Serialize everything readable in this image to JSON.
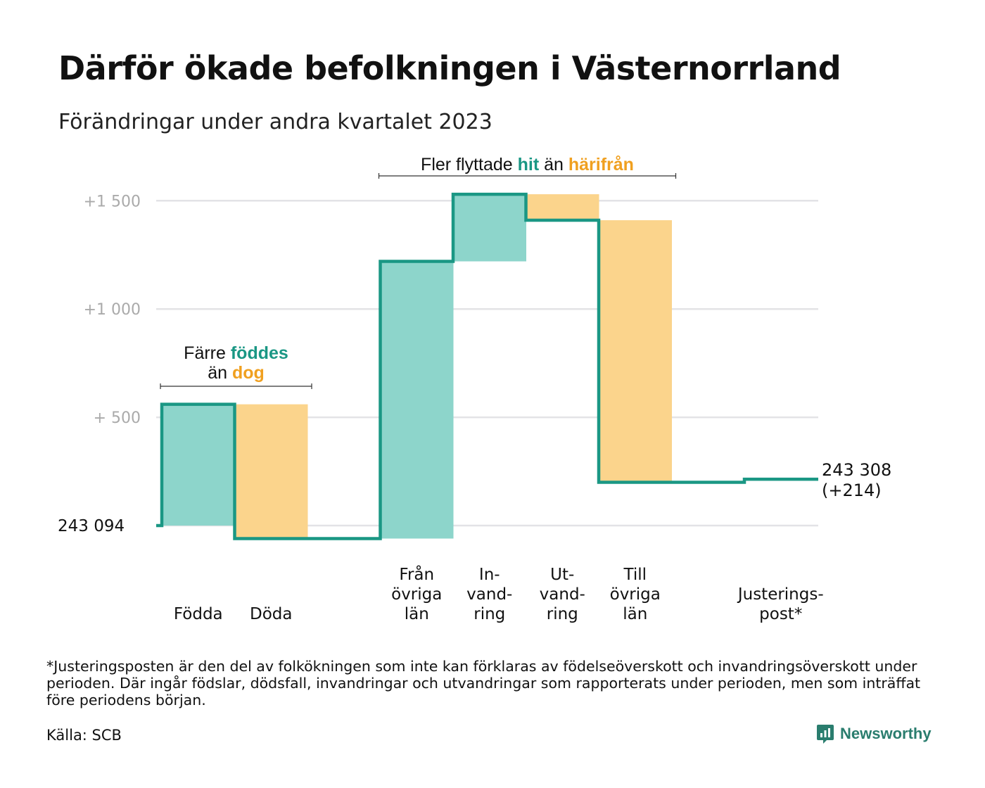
{
  "title": "Därför ökade befolkningen i Västernorrland",
  "subtitle": "Förändringar under andra kvartalet 2023",
  "footnote": "*Justeringsposten är den del av folkökningen som inte kan förklaras av födelseöverskott och invandringsöverskott under perioden. Där ingår födslar, dödsfall, invandringar och utvandringar som rapporterats under perioden, men som inträffat före periodens början.",
  "source": "Källa: SCB",
  "brand": "Newsworthy",
  "colors": {
    "positive": "#8dd5cb",
    "negative": "#fbd48c",
    "line": "#1a9784",
    "grid": "#e3e3e6",
    "highlight_pos": "#1a9784",
    "highlight_neg": "#f0a020"
  },
  "chart_data": {
    "type": "waterfall",
    "baseline": 243094,
    "baseline_label": "243   094",
    "end_label": [
      "243 308",
      "(+214)"
    ],
    "y_ticks": [
      {
        "value": 500,
        "label": "+   500"
      },
      {
        "value": 1000,
        "label": "+1   000"
      },
      {
        "value": 1500,
        "label": "+1   500"
      }
    ],
    "ylim": [
      -150,
      1650
    ],
    "steps": [
      {
        "category": [
          "",
          "Födda"
        ],
        "change": 560,
        "kind": "positive"
      },
      {
        "category": [
          "",
          "Döda"
        ],
        "change": -620,
        "kind": "negative"
      },
      {
        "category": [
          "",
          ""
        ],
        "change": 0,
        "kind": "spacer"
      },
      {
        "category": [
          "Från",
          "övriga",
          "län"
        ],
        "change": 1280,
        "kind": "positive"
      },
      {
        "category": [
          "In-",
          "vand-",
          "ring"
        ],
        "change": 310,
        "kind": "positive"
      },
      {
        "category": [
          "Ut-",
          "vand-",
          "ring"
        ],
        "change": -120,
        "kind": "negative"
      },
      {
        "category": [
          "Till",
          "övriga",
          "län"
        ],
        "change": -1210,
        "kind": "negative"
      },
      {
        "category": [
          "",
          ""
        ],
        "change": 0,
        "kind": "spacer"
      },
      {
        "category": [
          "Justerings-",
          "post*"
        ],
        "change": 14,
        "kind": "adjustment"
      }
    ],
    "annotations": [
      {
        "lines": [
          [
            {
              "text": "Färre ",
              "style": "plain"
            },
            {
              "text": "föddes",
              "style": "pos"
            }
          ],
          [
            {
              "text": "än ",
              "style": "plain"
            },
            {
              "text": "dog",
              "style": "neg"
            }
          ]
        ],
        "span": [
          0,
          1
        ]
      },
      {
        "lines": [
          [
            {
              "text": "Fler flyttade ",
              "style": "plain"
            },
            {
              "text": "hit",
              "style": "pos"
            },
            {
              "text": "  än ",
              "style": "plain"
            },
            {
              "text": "härifrån",
              "style": "neg"
            }
          ]
        ],
        "span": [
          3,
          6
        ]
      }
    ]
  }
}
